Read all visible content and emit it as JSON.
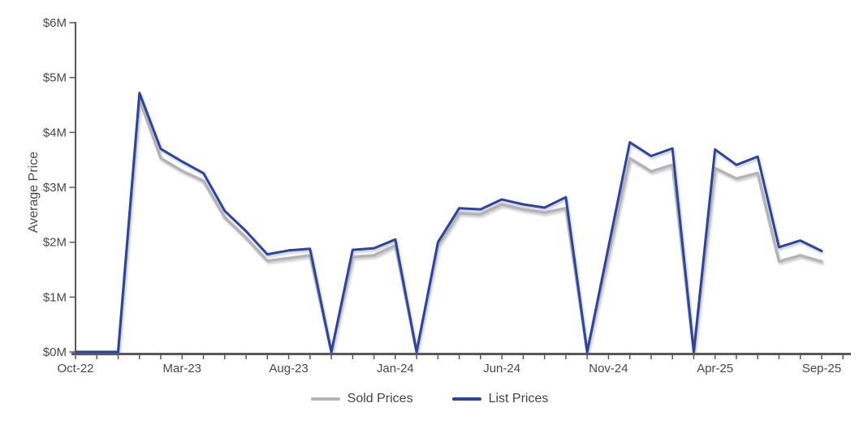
{
  "chart_data": {
    "type": "line",
    "title": "",
    "xlabel": "",
    "ylabel": "Average Price",
    "y_unit": "USD millions",
    "y_max_musd": 6,
    "ylim": [
      0,
      6000000
    ],
    "grid": "off",
    "legend_position": "bottom",
    "y_tick_labels": [
      "$0M",
      "$1M",
      "$2M",
      "$3M",
      "$4M",
      "$5M",
      "$6M"
    ],
    "x_tick_labels": [
      "Oct-22",
      "Mar-23",
      "Aug-23",
      "Jan-24",
      "Jun-24",
      "Nov-24",
      "Apr-25",
      "Sep-25"
    ],
    "x": [
      "Oct-22",
      "Nov-22",
      "Dec-22",
      "Jan-23",
      "Feb-23",
      "Mar-23",
      "Apr-23",
      "May-23",
      "Jun-23",
      "Jul-23",
      "Aug-23",
      "Sep-23",
      "Oct-23",
      "Nov-23",
      "Dec-23",
      "Jan-24",
      "Feb-24",
      "Mar-24",
      "Apr-24",
      "May-24",
      "Jun-24",
      "Jul-24",
      "Aug-24",
      "Sep-24",
      "Oct-24",
      "Nov-24",
      "Dec-24",
      "Jan-25",
      "Feb-25",
      "Mar-25",
      "Apr-25",
      "May-25",
      "Jun-25",
      "Jul-25",
      "Aug-25",
      "Sep-25"
    ],
    "series": [
      {
        "name": "Sold Prices",
        "color": "#b3b3b8",
        "values_musd": [
          0,
          0,
          0,
          4.6,
          3.53,
          3.3,
          3.12,
          2.45,
          2.08,
          1.66,
          1.71,
          1.76,
          0,
          1.73,
          1.76,
          1.94,
          0,
          1.94,
          2.53,
          2.51,
          2.69,
          2.6,
          2.54,
          2.62,
          0,
          1.77,
          3.53,
          3.29,
          3.41,
          0,
          3.35,
          3.16,
          3.26,
          1.65,
          1.76,
          1.65
        ]
      },
      {
        "name": "List Prices",
        "color": "#2b4499",
        "values_musd": [
          0,
          0,
          0,
          4.72,
          3.7,
          3.47,
          3.26,
          2.57,
          2.2,
          1.78,
          1.85,
          1.88,
          0,
          1.86,
          1.89,
          2.05,
          0,
          2.0,
          2.62,
          2.6,
          2.78,
          2.69,
          2.63,
          2.82,
          0,
          1.91,
          3.82,
          3.57,
          3.71,
          0,
          3.69,
          3.41,
          3.56,
          1.91,
          2.03,
          1.84
        ]
      }
    ],
    "style": {
      "axis_color": "#58585c",
      "label_color": "#48484f"
    }
  }
}
